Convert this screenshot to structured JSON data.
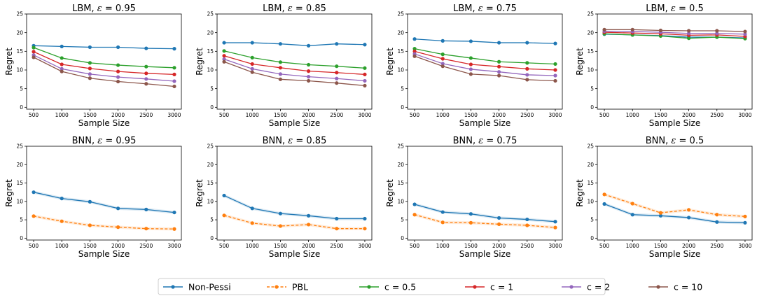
{
  "colors": {
    "Non-Pessi": "#1f77b4",
    "PBL": "#ff7f0e",
    "c = 0.5": "#2ca02c",
    "c = 1": "#d62728",
    "c = 2": "#9467bd",
    "c = 10": "#8c564b"
  },
  "legend": {
    "placement": "bottom-center",
    "entries": [
      {
        "label": "Non-Pessi",
        "style": "solid"
      },
      {
        "label": "PBL",
        "style": "dashed"
      },
      {
        "label": "c = 0.5",
        "style": "solid"
      },
      {
        "label": "c = 1",
        "style": "solid"
      },
      {
        "label": "c = 2",
        "style": "solid"
      },
      {
        "label": "c = 10",
        "style": "solid"
      }
    ]
  },
  "chart_data": [
    {
      "type": "line",
      "title_model": "LBM",
      "title_eps": "0.95",
      "xlabel": "Sample Size",
      "ylabel": "Regret",
      "x": [
        500,
        1000,
        1500,
        2000,
        2500,
        3000
      ],
      "ylim": [
        0,
        25
      ],
      "yticks": [
        "0",
        "5",
        "10",
        "15",
        "20",
        "25"
      ],
      "series": [
        {
          "name": "Non-Pessi",
          "values": [
            16.5,
            16.3,
            16.1,
            16.1,
            15.8,
            15.7
          ]
        },
        {
          "name": "c = 0.5",
          "values": [
            16.0,
            13.2,
            11.9,
            11.3,
            10.9,
            10.6
          ]
        },
        {
          "name": "c = 1",
          "values": [
            14.9,
            11.5,
            10.4,
            9.6,
            9.1,
            8.8
          ]
        },
        {
          "name": "c = 2",
          "values": [
            14.0,
            10.3,
            8.9,
            8.1,
            7.6,
            7.0
          ]
        },
        {
          "name": "c = 10",
          "values": [
            13.4,
            9.6,
            7.8,
            6.9,
            6.3,
            5.6
          ]
        }
      ]
    },
    {
      "type": "line",
      "title_model": "LBM",
      "title_eps": "0.85",
      "xlabel": "Sample Size",
      "ylabel": "Regret",
      "x": [
        500,
        1000,
        1500,
        2000,
        2500,
        3000
      ],
      "ylim": [
        0,
        25
      ],
      "yticks": [
        "0",
        "5",
        "10",
        "15",
        "20",
        "25"
      ],
      "series": [
        {
          "name": "Non-Pessi",
          "values": [
            17.3,
            17.3,
            17.0,
            16.5,
            17.0,
            16.8
          ]
        },
        {
          "name": "c = 0.5",
          "values": [
            15.1,
            13.3,
            12.1,
            11.4,
            11.0,
            10.5
          ]
        },
        {
          "name": "c = 1",
          "values": [
            13.8,
            11.6,
            10.6,
            9.7,
            9.3,
            8.8
          ]
        },
        {
          "name": "c = 2",
          "values": [
            12.9,
            10.3,
            8.9,
            8.2,
            7.7,
            7.1
          ]
        },
        {
          "name": "c = 10",
          "values": [
            12.2,
            9.4,
            7.5,
            7.1,
            6.5,
            5.8
          ]
        }
      ]
    },
    {
      "type": "line",
      "title_model": "LBM",
      "title_eps": "0.75",
      "xlabel": "Sample Size",
      "ylabel": "Regret",
      "x": [
        500,
        1000,
        1500,
        2000,
        2500,
        3000
      ],
      "ylim": [
        0,
        25
      ],
      "yticks": [
        "0",
        "5",
        "10",
        "15",
        "20",
        "25"
      ],
      "series": [
        {
          "name": "Non-Pessi",
          "values": [
            18.3,
            17.8,
            17.7,
            17.3,
            17.3,
            17.1
          ]
        },
        {
          "name": "c = 0.5",
          "values": [
            15.7,
            14.2,
            13.2,
            12.2,
            11.9,
            11.6
          ]
        },
        {
          "name": "c = 1",
          "values": [
            15.0,
            13.0,
            11.5,
            10.9,
            10.3,
            10.0
          ]
        },
        {
          "name": "c = 2",
          "values": [
            14.3,
            11.7,
            10.2,
            9.5,
            8.7,
            8.5
          ]
        },
        {
          "name": "c = 10",
          "values": [
            13.7,
            11.0,
            8.9,
            8.5,
            7.4,
            7.1
          ]
        }
      ]
    },
    {
      "type": "line",
      "title_model": "LBM",
      "title_eps": "0.5",
      "xlabel": "Sample Size",
      "ylabel": "Regret",
      "x": [
        500,
        1000,
        1500,
        2000,
        2500,
        3000
      ],
      "ylim": [
        0,
        25
      ],
      "yticks": [
        "0",
        "5",
        "10",
        "15",
        "20",
        "25"
      ],
      "series": [
        {
          "name": "Non-Pessi",
          "values": [
            19.6,
            19.4,
            19.2,
            18.8,
            18.8,
            18.6
          ]
        },
        {
          "name": "c = 0.5",
          "values": [
            19.7,
            19.4,
            19.1,
            18.5,
            18.8,
            18.4
          ]
        },
        {
          "name": "c = 1",
          "values": [
            20.1,
            19.9,
            19.7,
            19.3,
            19.4,
            19.0
          ]
        },
        {
          "name": "c = 2",
          "values": [
            20.4,
            20.3,
            20.1,
            19.8,
            19.8,
            19.6
          ]
        },
        {
          "name": "c = 10",
          "values": [
            20.8,
            20.8,
            20.6,
            20.5,
            20.5,
            20.3
          ]
        }
      ]
    },
    {
      "type": "line",
      "title_model": "BNN",
      "title_eps": "0.95",
      "xlabel": "Sample Size",
      "ylabel": "Regret",
      "x": [
        500,
        1000,
        1500,
        2000,
        2500,
        3000
      ],
      "ylim": [
        0,
        25
      ],
      "yticks": [
        "0",
        "5",
        "10",
        "15",
        "20",
        "25"
      ],
      "series": [
        {
          "name": "Non-Pessi",
          "values": [
            12.5,
            10.8,
            9.9,
            8.1,
            7.8,
            7.0
          ]
        },
        {
          "name": "PBL",
          "values": [
            6.0,
            4.6,
            3.5,
            3.0,
            2.6,
            2.5
          ]
        }
      ]
    },
    {
      "type": "line",
      "title_model": "BNN",
      "title_eps": "0.85",
      "xlabel": "Sample Size",
      "ylabel": "Regret",
      "x": [
        500,
        1000,
        1500,
        2000,
        2500,
        3000
      ],
      "ylim": [
        0,
        25
      ],
      "yticks": [
        "0",
        "5",
        "10",
        "15",
        "20",
        "25"
      ],
      "series": [
        {
          "name": "Non-Pessi",
          "values": [
            11.6,
            8.1,
            6.7,
            6.1,
            5.3,
            5.3
          ]
        },
        {
          "name": "PBL",
          "values": [
            6.2,
            4.1,
            3.3,
            3.7,
            2.6,
            2.6
          ]
        }
      ]
    },
    {
      "type": "line",
      "title_model": "BNN",
      "title_eps": "0.75",
      "xlabel": "Sample Size",
      "ylabel": "Regret",
      "x": [
        500,
        1000,
        1500,
        2000,
        2500,
        3000
      ],
      "ylim": [
        0,
        25
      ],
      "yticks": [
        "0",
        "5",
        "10",
        "15",
        "20",
        "25"
      ],
      "series": [
        {
          "name": "Non-Pessi",
          "values": [
            9.2,
            7.1,
            6.6,
            5.5,
            5.1,
            4.5
          ]
        },
        {
          "name": "PBL",
          "values": [
            6.4,
            4.3,
            4.2,
            3.8,
            3.5,
            2.9
          ]
        }
      ]
    },
    {
      "type": "line",
      "title_model": "BNN",
      "title_eps": "0.5",
      "xlabel": "Sample Size",
      "ylabel": "Regret",
      "x": [
        500,
        1000,
        1500,
        2000,
        2500,
        3000
      ],
      "ylim": [
        0,
        25
      ],
      "yticks": [
        "0",
        "5",
        "10",
        "15",
        "20",
        "25"
      ],
      "series": [
        {
          "name": "Non-Pessi",
          "values": [
            9.3,
            6.4,
            6.1,
            5.6,
            4.4,
            4.2
          ]
        },
        {
          "name": "PBL",
          "values": [
            11.9,
            9.4,
            6.9,
            7.7,
            6.4,
            5.9
          ]
        }
      ]
    }
  ]
}
